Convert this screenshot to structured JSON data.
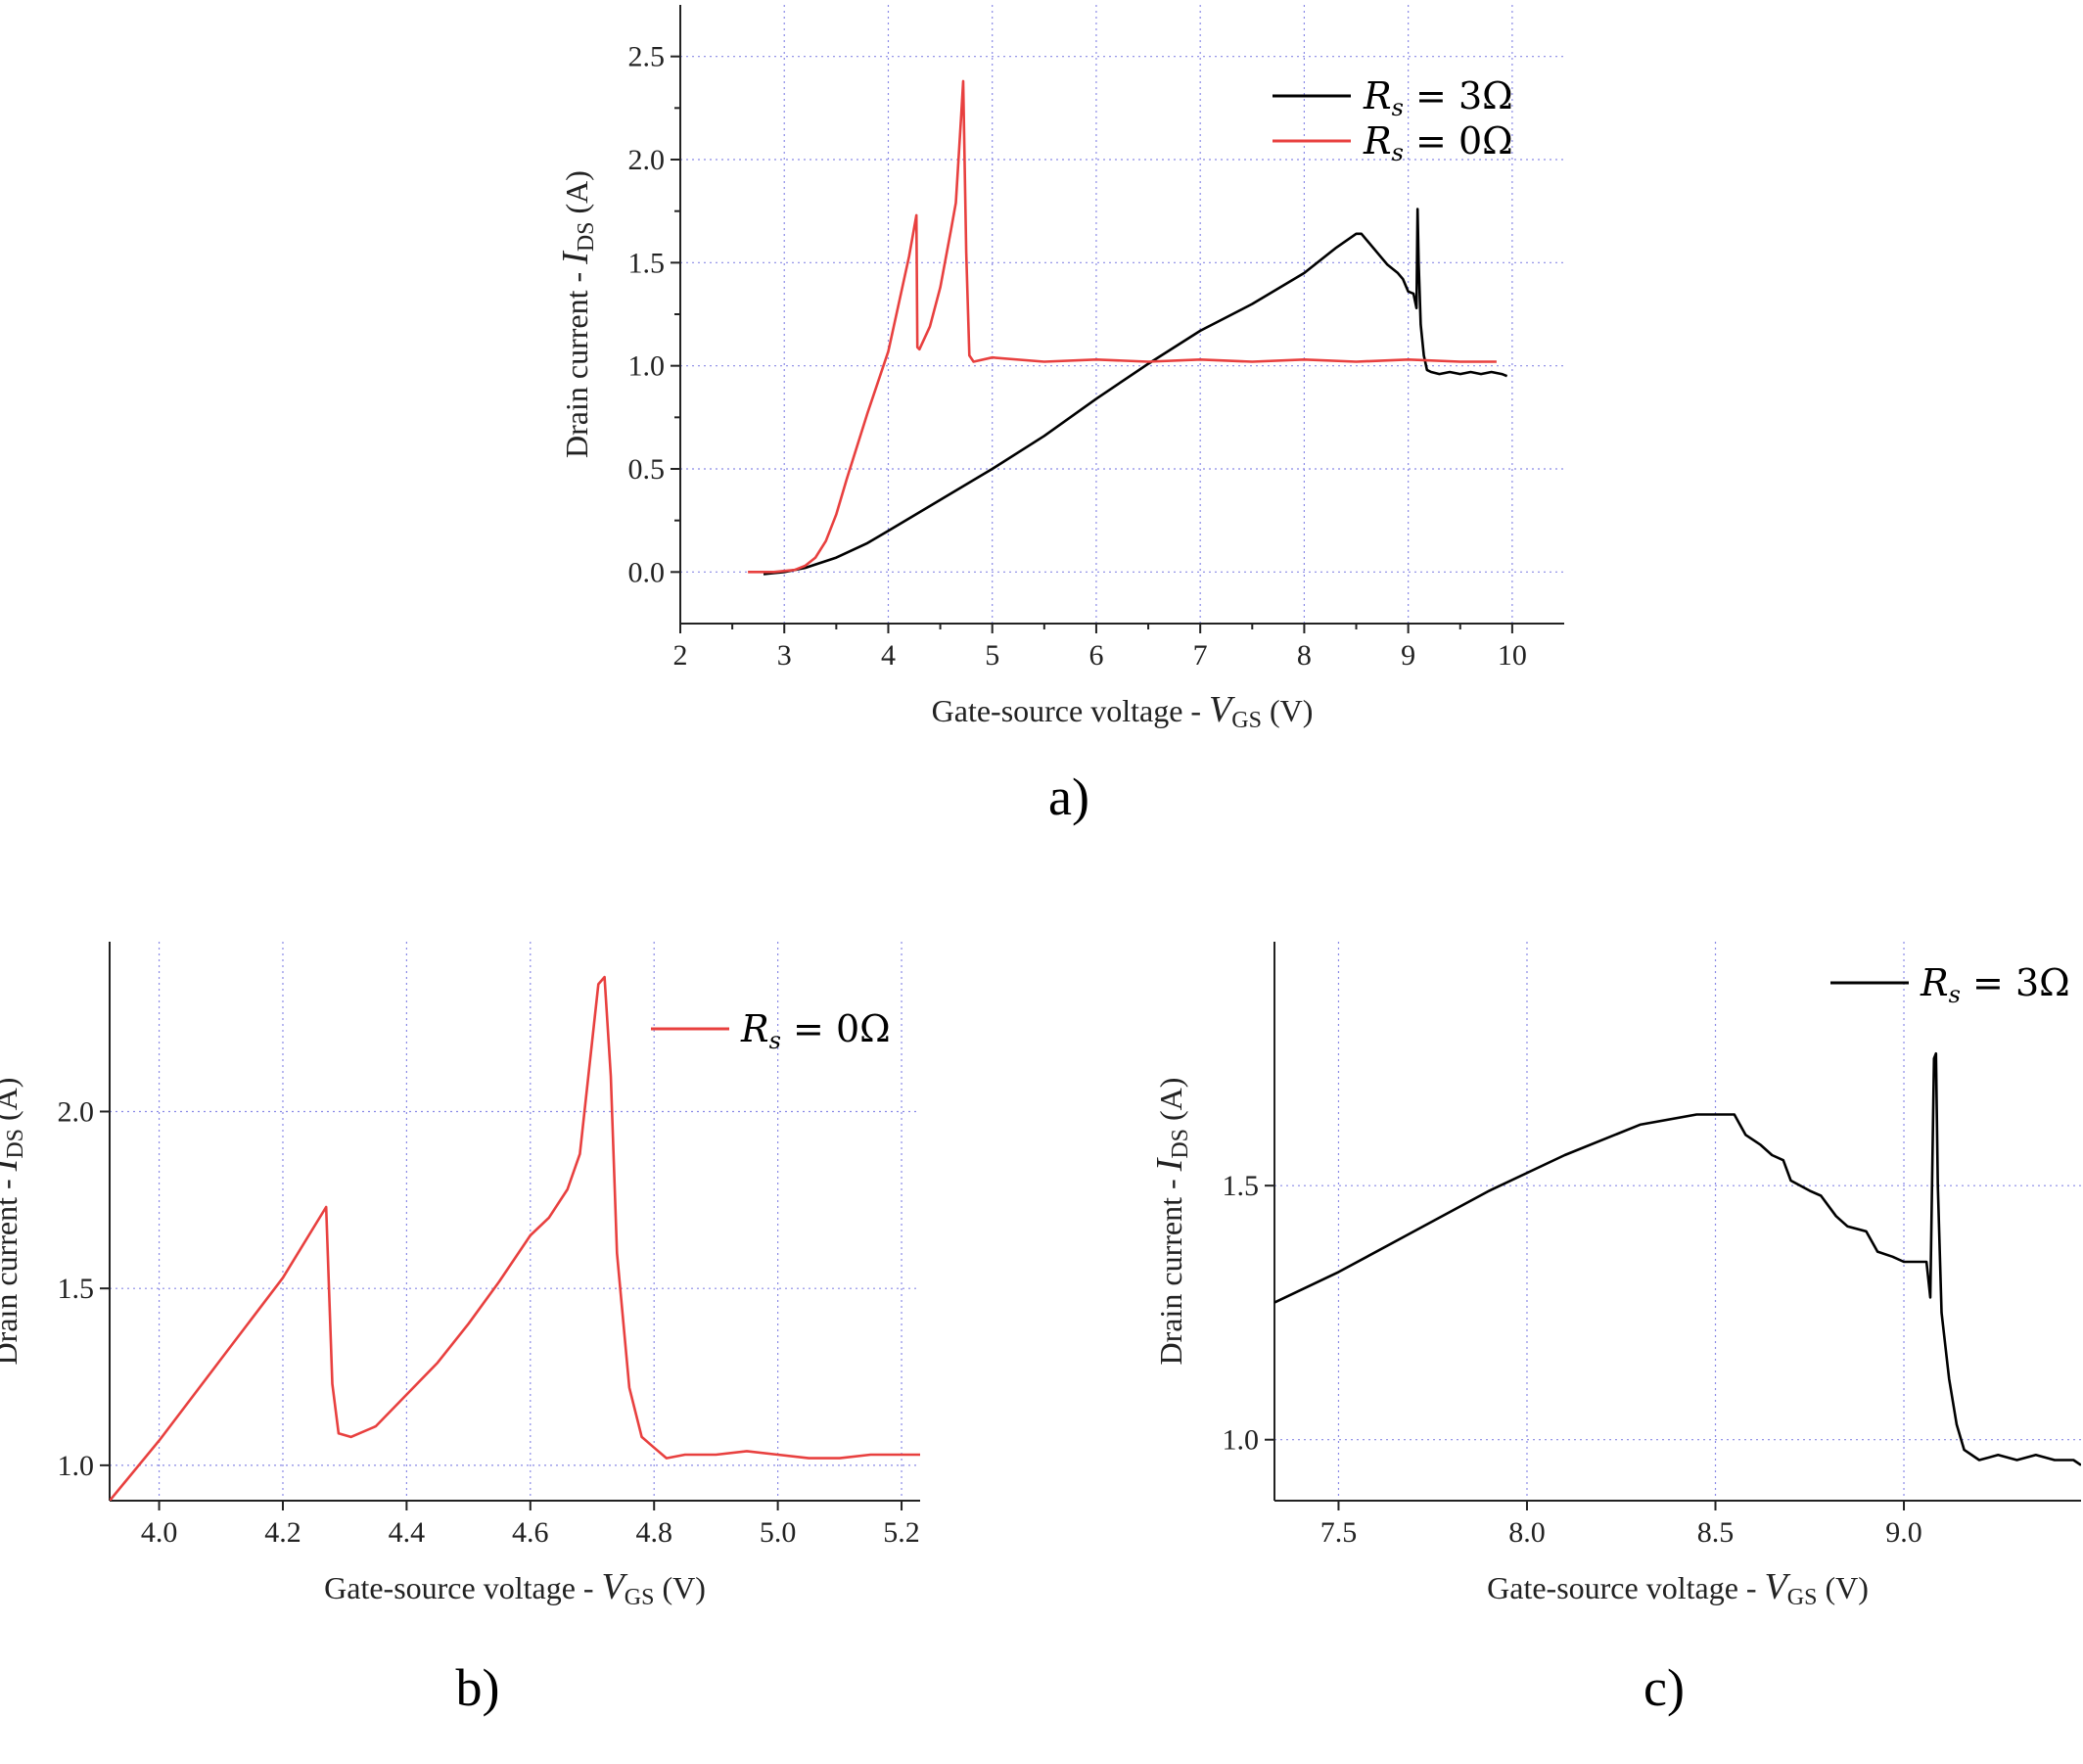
{
  "colors": {
    "Rs3": "#000000",
    "Rs0": "#e8403f",
    "grid": "#8a8ae6",
    "axis": "#222222"
  },
  "chart_data": [
    {
      "panel": "a)",
      "type": "line",
      "xlabel_prefix": "Gate-source voltage - ",
      "xlabel_symbol": "V",
      "xlabel_sub": "GS",
      "xlabel_unit": " (V)",
      "ylabel_prefix": "Drain current - ",
      "ylabel_symbol": "I",
      "ylabel_sub": "DS",
      "ylabel_unit": " (A)",
      "xlim": [
        2,
        10.5
      ],
      "ylim": [
        -0.25,
        2.75
      ],
      "xticks": [
        2,
        3,
        4,
        5,
        6,
        7,
        8,
        9,
        10
      ],
      "yticks": [
        0.0,
        0.5,
        1.0,
        1.5,
        2.0,
        2.5
      ],
      "xtick_labels": [
        "2",
        "3",
        "4",
        "5",
        "6",
        "7",
        "8",
        "9",
        "10"
      ],
      "ytick_labels": [
        "0.0",
        "0.5",
        "1.0",
        "1.5",
        "2.0",
        "2.5"
      ],
      "grid": true,
      "legend_position": "top-right",
      "series": [
        {
          "name": "Rs = 3Ω",
          "legend_symbol": "R",
          "legend_sub": "s",
          "legend_rest": " = 3Ω",
          "color_key": "Rs3",
          "x": [
            2.8,
            3.0,
            3.2,
            3.5,
            3.8,
            4.0,
            4.5,
            5.0,
            5.5,
            6.0,
            6.5,
            7.0,
            7.5,
            8.0,
            8.3,
            8.5,
            8.55,
            8.7,
            8.8,
            8.9,
            8.95,
            9.0,
            9.05,
            9.08,
            9.09,
            9.1,
            9.12,
            9.15,
            9.18,
            9.22,
            9.3,
            9.4,
            9.5,
            9.6,
            9.7,
            9.8,
            9.9,
            9.95
          ],
          "y": [
            -0.01,
            0.0,
            0.02,
            0.07,
            0.14,
            0.2,
            0.35,
            0.5,
            0.66,
            0.84,
            1.01,
            1.17,
            1.3,
            1.45,
            1.57,
            1.64,
            1.64,
            1.55,
            1.49,
            1.45,
            1.42,
            1.36,
            1.35,
            1.28,
            1.76,
            1.5,
            1.2,
            1.05,
            0.98,
            0.97,
            0.96,
            0.97,
            0.96,
            0.97,
            0.96,
            0.97,
            0.96,
            0.95
          ]
        },
        {
          "name": "Rs = 0Ω",
          "legend_symbol": "R",
          "legend_sub": "s",
          "legend_rest": " = 0Ω",
          "color_key": "Rs0",
          "x": [
            2.65,
            2.9,
            3.1,
            3.2,
            3.3,
            3.4,
            3.5,
            3.6,
            3.8,
            4.0,
            4.1,
            4.2,
            4.27,
            4.28,
            4.3,
            4.4,
            4.5,
            4.6,
            4.65,
            4.7,
            4.72,
            4.75,
            4.78,
            4.82,
            5.0,
            5.5,
            6.0,
            6.5,
            7.0,
            7.5,
            8.0,
            8.5,
            9.0,
            9.5,
            9.85
          ],
          "y": [
            0.0,
            0.0,
            0.01,
            0.03,
            0.07,
            0.15,
            0.28,
            0.45,
            0.77,
            1.07,
            1.3,
            1.53,
            1.73,
            1.09,
            1.08,
            1.19,
            1.38,
            1.65,
            1.79,
            2.2,
            2.38,
            1.55,
            1.05,
            1.02,
            1.04,
            1.02,
            1.03,
            1.02,
            1.03,
            1.02,
            1.03,
            1.02,
            1.03,
            1.02,
            1.02
          ]
        }
      ]
    },
    {
      "panel": "b)",
      "type": "line",
      "xlabel_prefix": "Gate-source voltage - ",
      "xlabel_symbol": "V",
      "xlabel_sub": "GS",
      "xlabel_unit": " (V)",
      "ylabel_prefix": "Drain current - ",
      "ylabel_symbol": "I",
      "ylabel_sub": "DS",
      "ylabel_unit": " (A)",
      "xlim": [
        3.92,
        5.23
      ],
      "ylim": [
        0.9,
        2.48
      ],
      "xticks": [
        4.0,
        4.2,
        4.4,
        4.6,
        4.8,
        5.0,
        5.2
      ],
      "yticks": [
        1.0,
        1.5,
        2.0
      ],
      "xtick_labels": [
        "4.0",
        "4.2",
        "4.4",
        "4.6",
        "4.8",
        "5.0",
        "5.2"
      ],
      "ytick_labels": [
        "1.0",
        "1.5",
        "2.0"
      ],
      "grid": true,
      "legend_position": "top-right",
      "series": [
        {
          "name": "Rs = 0Ω",
          "legend_symbol": "R",
          "legend_sub": "s",
          "legend_rest": " = 0Ω",
          "color_key": "Rs0",
          "x": [
            3.92,
            4.0,
            4.1,
            4.2,
            4.27,
            4.28,
            4.29,
            4.31,
            4.35,
            4.4,
            4.45,
            4.5,
            4.55,
            4.6,
            4.63,
            4.66,
            4.68,
            4.7,
            4.71,
            4.72,
            4.73,
            4.74,
            4.76,
            4.78,
            4.8,
            4.82,
            4.85,
            4.9,
            4.95,
            5.0,
            5.05,
            5.1,
            5.15,
            5.2,
            5.23
          ],
          "y": [
            0.9,
            1.07,
            1.3,
            1.53,
            1.73,
            1.23,
            1.09,
            1.08,
            1.11,
            1.2,
            1.29,
            1.4,
            1.52,
            1.65,
            1.7,
            1.78,
            1.88,
            2.2,
            2.36,
            2.38,
            2.1,
            1.6,
            1.22,
            1.08,
            1.05,
            1.02,
            1.03,
            1.03,
            1.04,
            1.03,
            1.02,
            1.02,
            1.03,
            1.03,
            1.03
          ]
        }
      ]
    },
    {
      "panel": "c)",
      "type": "line",
      "xlabel_prefix": "Gate-source voltage - ",
      "xlabel_symbol": "V",
      "xlabel_sub": "GS",
      "xlabel_unit": " (V)",
      "ylabel_prefix": "Drain current - ",
      "ylabel_symbol": "I",
      "ylabel_sub": "DS",
      "ylabel_unit": " (A)",
      "xlim": [
        7.33,
        9.47
      ],
      "ylim": [
        0.88,
        1.98
      ],
      "xticks": [
        7.5,
        8.0,
        8.5,
        9.0
      ],
      "yticks": [
        1.0,
        1.5
      ],
      "xtick_labels": [
        "7.5",
        "8.0",
        "8.5",
        "9.0"
      ],
      "ytick_labels": [
        "1.0",
        "1.5"
      ],
      "grid": true,
      "legend_position": "top-right",
      "series": [
        {
          "name": "Rs = 3Ω",
          "legend_symbol": "R",
          "legend_sub": "s",
          "legend_rest": " = 3Ω",
          "color_key": "Rs3",
          "x": [
            7.33,
            7.5,
            7.7,
            7.9,
            8.1,
            8.3,
            8.45,
            8.5,
            8.55,
            8.58,
            8.62,
            8.65,
            8.68,
            8.7,
            8.75,
            8.78,
            8.82,
            8.85,
            8.9,
            8.93,
            8.97,
            9.0,
            9.03,
            9.06,
            9.07,
            9.08,
            9.085,
            9.09,
            9.1,
            9.12,
            9.14,
            9.16,
            9.2,
            9.25,
            9.3,
            9.35,
            9.4,
            9.45,
            9.47
          ],
          "y": [
            1.27,
            1.33,
            1.41,
            1.49,
            1.56,
            1.62,
            1.64,
            1.64,
            1.64,
            1.6,
            1.58,
            1.56,
            1.55,
            1.51,
            1.49,
            1.48,
            1.44,
            1.42,
            1.41,
            1.37,
            1.36,
            1.35,
            1.35,
            1.35,
            1.28,
            1.75,
            1.76,
            1.5,
            1.25,
            1.12,
            1.03,
            0.98,
            0.96,
            0.97,
            0.96,
            0.97,
            0.96,
            0.96,
            0.95
          ]
        }
      ]
    }
  ]
}
